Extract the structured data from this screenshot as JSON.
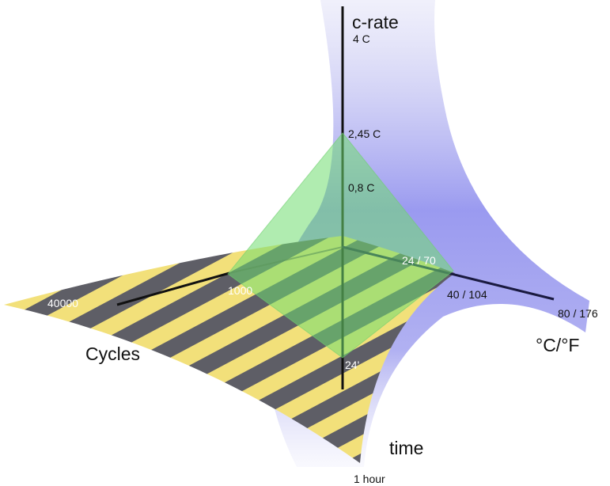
{
  "axes": {
    "c_rate": {
      "label": "c-rate",
      "ticks": [
        "4 C",
        "2,45 C",
        "0,8 C"
      ]
    },
    "cycles": {
      "label": "Cycles",
      "ticks": [
        "40000",
        "1000"
      ]
    },
    "temperature": {
      "label": "°C/°F",
      "ticks": [
        "24 / 70",
        "40 / 104",
        "80 / 176"
      ]
    },
    "time": {
      "label": "time",
      "ticks": [
        "24'",
        "1 hour"
      ]
    }
  }
}
